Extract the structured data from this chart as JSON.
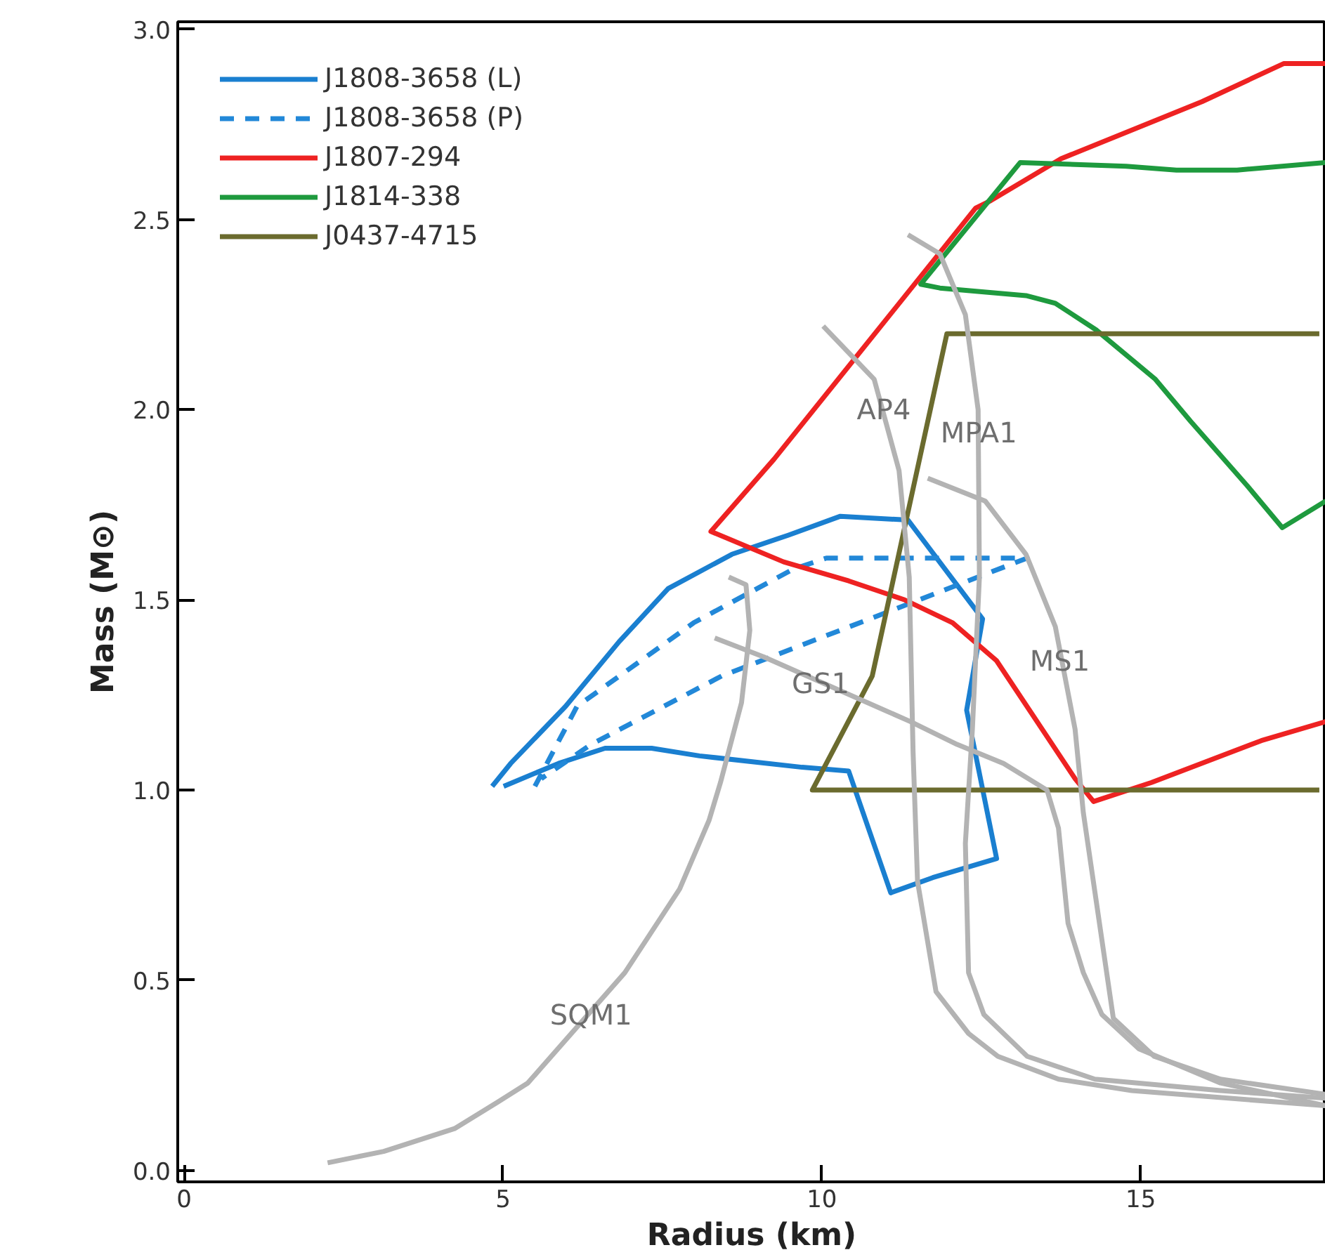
{
  "chart_data": {
    "type": "line",
    "xlabel": "Radius (km)",
    "ylabel": "Mass (M⊙)",
    "xlim": [
      -0.1,
      17.9
    ],
    "ylim": [
      -0.03,
      3.02
    ],
    "xticks": [
      0,
      5,
      10,
      15
    ],
    "yticks": [
      {
        "value": 0,
        "label": "0.0"
      },
      {
        "value": 0.5,
        "label": "0.5"
      },
      {
        "value": 1,
        "label": "1.0"
      },
      {
        "value": 1.5,
        "label": "1.5"
      },
      {
        "value": 2,
        "label": "2.0"
      },
      {
        "value": 2.5,
        "label": "2.5"
      },
      {
        "value": 3,
        "label": "3.0"
      }
    ],
    "grid": false,
    "legend": "top left",
    "marker": "none",
    "series": [
      {
        "name": "J1808-3658 (L)",
        "color": "#1a7fd0",
        "line_style": "solid",
        "x": [
          4.83,
          5.12,
          5.98,
          6.82,
          7.59,
          8.59,
          9.47,
          10.29,
          11.35,
          12.52,
          12.27,
          12.74,
          11.74,
          11.08,
          10.42,
          9.69,
          8.08,
          7.33,
          6.6,
          5.87,
          5.01
        ],
        "values": [
          1.01,
          1.07,
          1.22,
          1.39,
          1.53,
          1.62,
          1.67,
          1.72,
          1.71,
          1.45,
          1.21,
          0.82,
          0.77,
          0.73,
          1.05,
          1.06,
          1.09,
          1.11,
          1.11,
          1.07,
          1.01
        ]
      },
      {
        "name": "J1808-3658 (P)",
        "color": "#2288d8",
        "line_style": "dashed",
        "x": [
          5.5,
          6.16,
          7.99,
          9.54,
          10.07,
          13.22,
          8.43,
          6.38,
          5.6
        ],
        "values": [
          1.01,
          1.22,
          1.44,
          1.58,
          1.61,
          1.61,
          1.3,
          1.12,
          1.03
        ]
      },
      {
        "name": "J1807-294",
        "color": "#ee2222",
        "line_style": "solid",
        "x": [
          17.9,
          16.89,
          15.17,
          14.26,
          13.97,
          12.74,
          12.05,
          11.3,
          10.42,
          9.4,
          8.26,
          9.25,
          12.41,
          12.65,
          13.75,
          15.96,
          17.24,
          17.9
        ],
        "values": [
          1.18,
          1.13,
          1.02,
          0.97,
          1.03,
          1.34,
          1.44,
          1.5,
          1.55,
          1.6,
          1.68,
          1.87,
          2.53,
          2.55,
          2.66,
          2.81,
          2.91,
          2.91
        ]
      },
      {
        "name": "J1814-338",
        "color": "#1e9a3e",
        "line_style": "solid",
        "x": [
          17.9,
          16.51,
          15.56,
          14.77,
          13.11,
          11.55,
          11.85,
          13.2,
          13.66,
          14.3,
          15.23,
          15.78,
          16.67,
          17.22,
          17.9
        ],
        "values": [
          2.65,
          2.63,
          2.63,
          2.64,
          2.65,
          2.33,
          2.32,
          2.3,
          2.28,
          2.21,
          2.08,
          1.97,
          1.8,
          1.69,
          1.76
        ]
      },
      {
        "name": "J0437-4715",
        "color": "#6b6b2e",
        "line_style": "solid",
        "x": [
          17.8,
          9.85,
          10.79,
          11.96,
          17.8
        ],
        "values": [
          1.0,
          1.0,
          1.3,
          2.2,
          2.2
        ]
      },
      {
        "color": "#b3b3b3",
        "line_style": "solid",
        "x": [
          2.25,
          3.13,
          4.24,
          4.92,
          5.39,
          6.91,
          7.77,
          8.23,
          8.41,
          8.74,
          8.87,
          8.81,
          8.54
        ],
        "values": [
          0.02,
          0.05,
          0.11,
          0.18,
          0.23,
          0.52,
          0.74,
          0.92,
          1.02,
          1.23,
          1.42,
          1.54,
          1.56
        ]
      },
      {
        "color": "#b3b3b3",
        "line_style": "solid",
        "x": [
          8.32,
          9.09,
          11.39,
          12.12,
          12.85,
          13.53,
          13.71,
          13.86,
          14.1,
          14.39,
          14.97,
          16.25,
          17.9
        ],
        "values": [
          1.4,
          1.35,
          1.18,
          1.12,
          1.07,
          1.0,
          0.9,
          0.65,
          0.52,
          0.41,
          0.32,
          0.23,
          0.17
        ]
      },
      {
        "color": "#b3b3b3",
        "line_style": "solid",
        "x": [
          11.66,
          12.56,
          13.2,
          13.66,
          13.97,
          14.1,
          14.57,
          15.21,
          16.25,
          17.9
        ],
        "values": [
          1.82,
          1.76,
          1.62,
          1.43,
          1.16,
          0.94,
          0.4,
          0.3,
          0.24,
          0.2
        ]
      },
      {
        "color": "#b3b3b3",
        "line_style": "solid",
        "x": [
          10.02,
          10.82,
          11.21,
          11.37,
          11.43,
          11.5,
          11.79,
          12.3,
          12.76,
          13.71,
          14.86,
          17.9
        ],
        "values": [
          2.22,
          2.08,
          1.84,
          1.56,
          1.1,
          0.76,
          0.47,
          0.36,
          0.3,
          0.24,
          0.21,
          0.17
        ]
      },
      {
        "color": "#b3b3b3",
        "line_style": "solid",
        "x": [
          11.35,
          11.85,
          12.25,
          12.45,
          12.47,
          12.36,
          12.25,
          12.3,
          12.54,
          13.22,
          14.28,
          16.25,
          17.9
        ],
        "values": [
          2.46,
          2.41,
          2.25,
          2.0,
          1.56,
          1.16,
          0.86,
          0.52,
          0.41,
          0.3,
          0.24,
          0.21,
          0.19
        ]
      }
    ],
    "annotations": [
      {
        "text": "AP4",
        "x": 10.97,
        "y": 2.0
      },
      {
        "text": "MPA1",
        "x": 12.46,
        "y": 1.94
      },
      {
        "text": "MS1",
        "x": 13.73,
        "y": 1.34
      },
      {
        "text": "GS1",
        "x": 9.98,
        "y": 1.28
      },
      {
        "text": "SQM1",
        "x": 6.38,
        "y": 0.41
      }
    ]
  }
}
